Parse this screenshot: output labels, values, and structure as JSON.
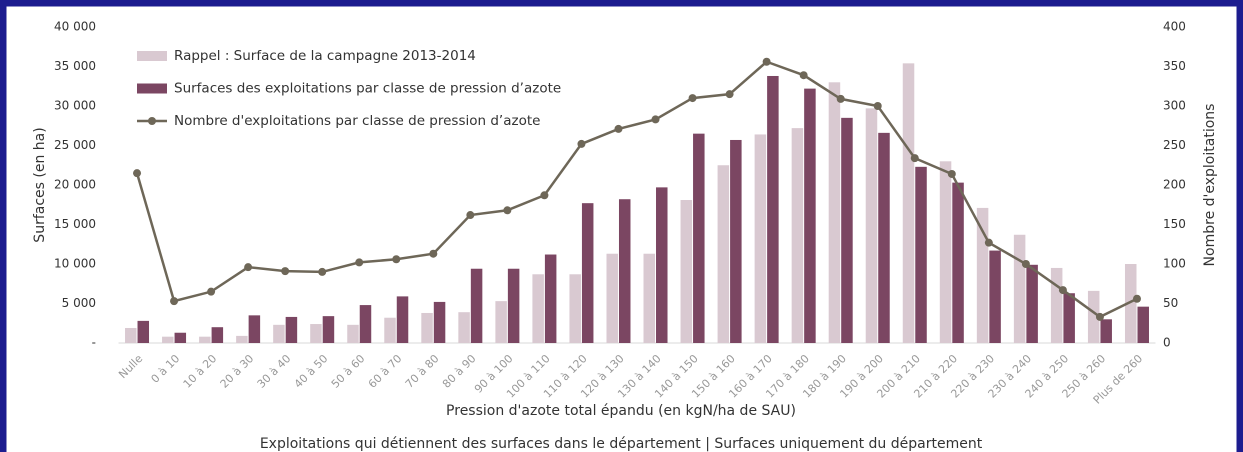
{
  "chart_data": {
    "type": "bar",
    "subtitle": "Exploitations qui détiennent des surfaces dans le département | Surfaces uniquement du département",
    "x_label": "Pression d'azote total épandu (en kgN/ha de SAU)",
    "y_label": "Surfaces (en ha)",
    "y2_label": "Nombre d'exploitations",
    "legend": "top-left",
    "categories": [
      "Nulle",
      "0 à 10",
      "10 à 20",
      "20 à 30",
      "30 à 40",
      "40 à 50",
      "50 à 60",
      "60 à 70",
      "70 à 80",
      "80 à 90",
      "90 à 100",
      "100 à 110",
      "110 à 120",
      "120 à 130",
      "130 à 140",
      "140 à 150",
      "150 à 160",
      "160 à 170",
      "170 à 180",
      "180 à 190",
      "190 à 200",
      "200 à 210",
      "210 à 220",
      "220 à 230",
      "230 à 240",
      "240 à 250",
      "250 à 260",
      "Plus de 260"
    ],
    "series": [
      {
        "name": "Rappel : Surface de la campagne 2013-2014",
        "color": "#d9c9d1",
        "values": [
          1900,
          800,
          800,
          900,
          2300,
          2400,
          2300,
          3200,
          3800,
          3900,
          5300,
          8700,
          8700,
          11300,
          11300,
          18100,
          22500,
          26400,
          27200,
          33000,
          29700,
          35400,
          23000,
          17100,
          13700,
          9500,
          6600,
          10000
        ]
      },
      {
        "name": "Surfaces des exploitations par classe de pression d’azote",
        "color": "#7b4662",
        "values": [
          2800,
          1300,
          2000,
          3500,
          3300,
          3400,
          4800,
          5900,
          5200,
          9400,
          9400,
          11200,
          17700,
          18200,
          19700,
          26500,
          25700,
          33800,
          32200,
          28500,
          26600,
          22300,
          20300,
          11700,
          9900,
          6300,
          3000,
          4600
        ]
      },
      {
        "name": "Nombre d'exploitations  par classe de pression d’azote",
        "color": "#6e6758",
        "type": "line",
        "axis": "y2",
        "values": [
          215,
          53,
          65,
          96,
          91,
          90,
          102,
          106,
          113,
          162,
          168,
          187,
          252,
          271,
          283,
          310,
          315,
          356,
          339,
          309,
          300,
          234,
          214,
          127,
          100,
          67,
          33,
          56
        ]
      }
    ],
    "ylim": [
      0,
      40000
    ],
    "yticks": [
      {
        "value": 0,
        "label": "-"
      },
      {
        "value": 5000,
        "label": "5 000"
      },
      {
        "value": 10000,
        "label": "10 000"
      },
      {
        "value": 15000,
        "label": "15 000"
      },
      {
        "value": 20000,
        "label": "20 000"
      },
      {
        "value": 25000,
        "label": "25 000"
      },
      {
        "value": 30000,
        "label": "30 000"
      },
      {
        "value": 35000,
        "label": "35 000"
      },
      {
        "value": 40000,
        "label": "40 000"
      }
    ],
    "y2lim": [
      0,
      400
    ],
    "y2ticks": [
      0,
      50,
      100,
      150,
      200,
      250,
      300,
      350,
      400
    ]
  }
}
